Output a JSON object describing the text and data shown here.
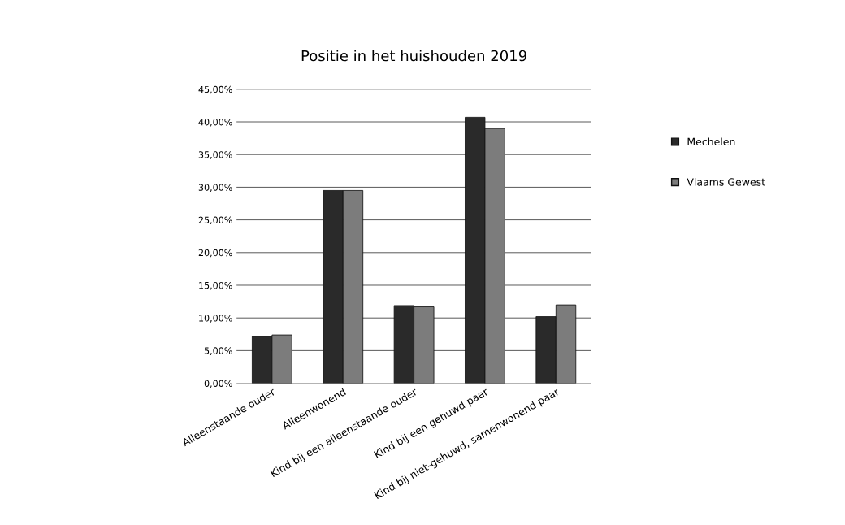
{
  "chart_data": {
    "type": "bar",
    "title": "Positie in het huishouden 2019",
    "categories": [
      "Alleenstaande ouder",
      "Alleenwonend",
      "Kind bij een alleenstaande ouder",
      "Kind bij een gehuwd paar",
      "Kind bij niet-gehuwd, samenwonend paar"
    ],
    "series": [
      {
        "name": "Mechelen",
        "color": "#2a2a2a",
        "values": [
          7.2,
          29.5,
          11.9,
          40.7,
          10.2
        ]
      },
      {
        "name": "Vlaams Gewest",
        "color": "#7c7c7c",
        "values": [
          7.4,
          29.5,
          11.7,
          39.0,
          12.0
        ]
      }
    ],
    "ylim": [
      0,
      45
    ],
    "yticks": [
      {
        "value": 0,
        "label": "0,00%"
      },
      {
        "value": 5,
        "label": "5,00%"
      },
      {
        "value": 10,
        "label": "10,00%"
      },
      {
        "value": 15,
        "label": "15,00%"
      },
      {
        "value": 20,
        "label": "20,00%"
      },
      {
        "value": 25,
        "label": "25,00%"
      },
      {
        "value": 30,
        "label": "30,00%"
      },
      {
        "value": 35,
        "label": "35,00%"
      },
      {
        "value": 40,
        "label": "40,00%"
      },
      {
        "value": 45,
        "label": "45,00%"
      }
    ],
    "grid": "y",
    "legend": "right"
  }
}
